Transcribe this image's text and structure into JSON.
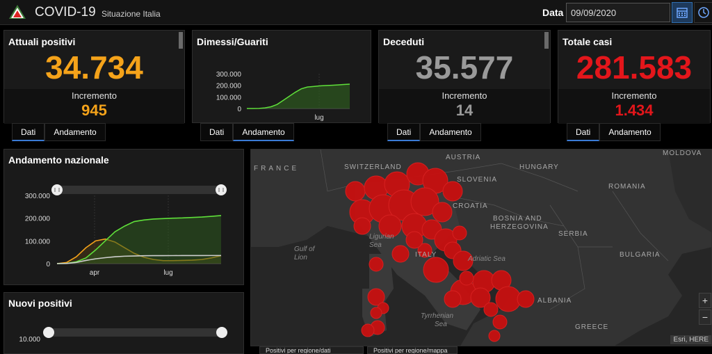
{
  "header": {
    "title": "COVID-19",
    "subtitle": "Situazione Italia",
    "date_label": "Data",
    "date_value": "09/09/2020",
    "calendar_icon": "calendar-icon",
    "clock_icon": "clock-icon"
  },
  "colors": {
    "positivi": "#f5a31a",
    "deceduti": "#9a9a9a",
    "totale": "#e3161b",
    "guariti": "#5fe03a",
    "accent": "#3a7bd5"
  },
  "cards": {
    "positivi": {
      "title": "Attuali positivi",
      "value": "34.734",
      "inc_label": "Incremento",
      "inc_value": "945"
    },
    "guariti": {
      "title": "Dimessi/Guariti"
    },
    "deceduti": {
      "title": "Deceduti",
      "value": "35.577",
      "inc_label": "Incremento",
      "inc_value": "14"
    },
    "totale": {
      "title": "Totale casi",
      "value": "281.583",
      "inc_label": "Incremento",
      "inc_value": "1.434"
    }
  },
  "tabs": {
    "dati": "Dati",
    "andamento": "Andamento"
  },
  "panels": {
    "andamento": {
      "title": "Andamento nazionale"
    },
    "nuovi": {
      "title": "Nuovi positivi"
    }
  },
  "chart_data": [
    {
      "type": "area",
      "title": "Dimessi/Guariti",
      "yticks": [
        "300.000",
        "200.000",
        "100.000",
        "0"
      ],
      "xticks": [
        "lug"
      ],
      "ylim": [
        0,
        300000
      ],
      "series": [
        {
          "values": [
            0,
            0,
            1000,
            5000,
            15000,
            35000,
            70000,
            105000,
            140000,
            170000,
            185000,
            190000,
            195000,
            198000,
            200000,
            203000,
            207000,
            210000
          ]
        }
      ]
    },
    {
      "type": "line",
      "title": "Andamento nazionale",
      "yticks": [
        "300.000",
        "200.000",
        "100.000",
        "0"
      ],
      "xticks": [
        "apr",
        "lug"
      ],
      "ylim": [
        0,
        300000
      ],
      "series": [
        {
          "values": [
            0,
            5000,
            30000,
            70000,
            100000,
            108000,
            95000,
            70000,
            45000,
            28000,
            18000,
            13000,
            13000,
            14000,
            15000,
            18000,
            25000,
            34734
          ]
        },
        {
          "values": [
            0,
            1000,
            8000,
            25000,
            60000,
            100000,
            140000,
            165000,
            185000,
            192000,
            196000,
            198000,
            200000,
            201000,
            203000,
            205000,
            208000,
            211272
          ]
        },
        {
          "values": [
            0,
            500,
            5000,
            14000,
            21000,
            26000,
            30000,
            32500,
            33500,
            34500,
            35000,
            35100,
            35200,
            35300,
            35400,
            35500,
            35550,
            35577
          ]
        }
      ]
    },
    {
      "type": "bar",
      "title": "Nuovi positivi",
      "yticks": [
        "10.000"
      ]
    }
  ],
  "map": {
    "labels": {
      "france": "FRANCE",
      "switzerland": "SWITZERLAND",
      "austria": "AUSTRIA",
      "hungary": "HUNGARY",
      "moldova": "MOLDOVA",
      "slovenia": "SLOVENIA",
      "croatia": "CROATIA",
      "romania": "ROMANIA",
      "bosnia": "BOSNIA AND",
      "herzegovina": "HERZEGOVINA",
      "serbia": "SERBIA",
      "bulgaria": "BULGARIA",
      "albania": "ALBANIA",
      "greece": "GREECE",
      "italy": "ITALY",
      "ligurian": "Ligurian",
      "ligurian2": "Sea",
      "gulf": "Gulf of",
      "gulf2": "Lion",
      "adriatic": "Adriatic Sea",
      "tyrrhenian": "Tyrrhenian",
      "tyrrhenian2": "Sea"
    },
    "zoom_in": "+",
    "zoom_out": "−",
    "attribution": "Esri, HERE",
    "bottom_tabs": [
      "Positivi per regione/dati",
      "Positivi per regione/mappa"
    ]
  }
}
